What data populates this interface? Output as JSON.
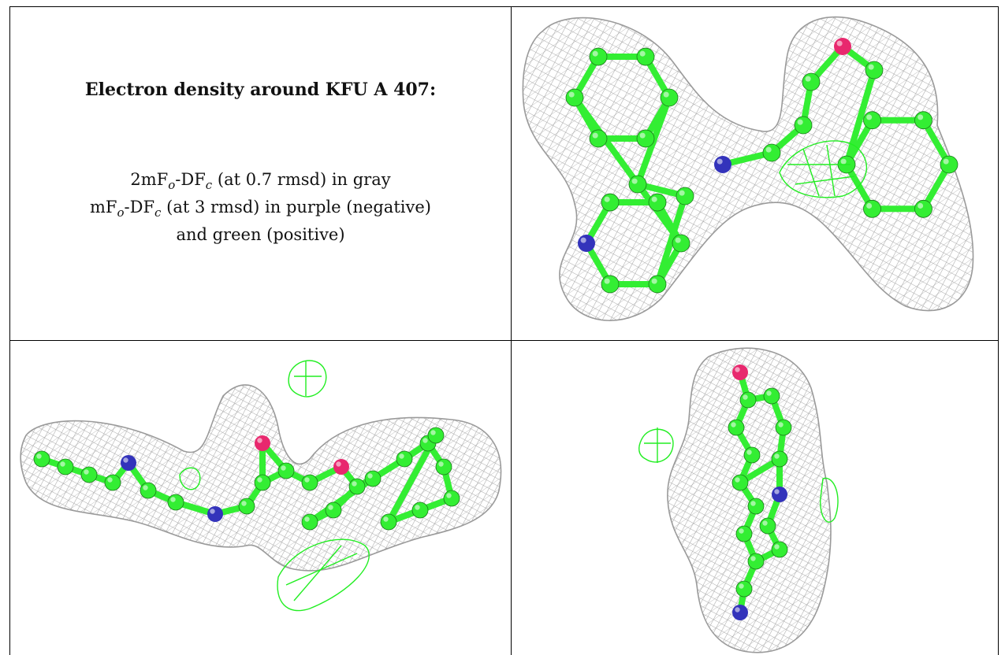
{
  "title": "Electron density around KFU A 407:",
  "legend": {
    "line1": {
      "prefix": "2mF",
      "sub1": "o",
      "mid": "-DF",
      "sub2": "c",
      "suffix": " (at 0.7 rmsd) in gray"
    },
    "line2": {
      "prefix": "mF",
      "sub1": "o",
      "mid": "-DF",
      "sub2": "c",
      "suffix": " (at 3 rmsd) in purple (negative)"
    },
    "line3": "and green (positive)"
  },
  "colors": {
    "density_2fofc": "#9a9a9a",
    "positive": "#22ee22",
    "negative": "#cc22cc",
    "carbon": "#33ee33",
    "nitrogen": "#3333bb",
    "oxygen": "#e8286e"
  }
}
